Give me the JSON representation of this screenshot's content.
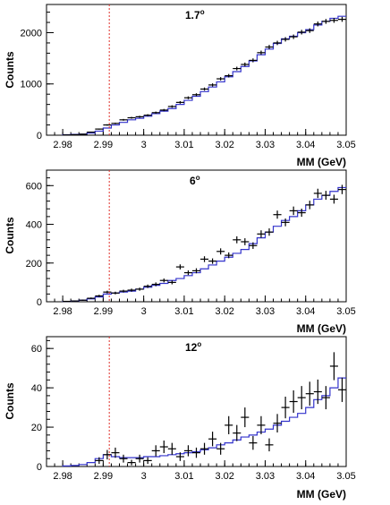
{
  "chart_data": [
    {
      "type": "histogram",
      "panel_label": "1.7",
      "panel_label_sup": "o",
      "ylabel": "Counts",
      "xlabel": "MM (GeV)",
      "xlim": [
        2.976,
        3.05
      ],
      "ylim": [
        0,
        2550
      ],
      "xticks": [
        "2.98",
        "2.99",
        "3",
        "3.01",
        "3.02",
        "3.03",
        "3.04",
        "3.05"
      ],
      "xtick_values": [
        2.98,
        2.99,
        3.0,
        3.01,
        3.02,
        3.03,
        3.04,
        3.05
      ],
      "yticks": [
        "0",
        "1000",
        "2000"
      ],
      "ytick_values": [
        0,
        1000,
        2000
      ],
      "threshold_x": 2.9915,
      "threshold_color": "#e0302a",
      "mc_color": "#3333cc",
      "bin_edges": [
        2.98,
        2.982,
        2.984,
        2.986,
        2.988,
        2.99,
        2.992,
        2.994,
        2.996,
        2.998,
        3.0,
        3.002,
        3.004,
        3.006,
        3.008,
        3.01,
        3.012,
        3.014,
        3.016,
        3.018,
        3.02,
        3.022,
        3.024,
        3.026,
        3.028,
        3.03,
        3.032,
        3.034,
        3.036,
        3.038,
        3.04,
        3.042,
        3.044,
        3.046,
        3.048,
        3.05
      ],
      "mc_values": [
        10,
        15,
        20,
        40,
        80,
        140,
        200,
        250,
        300,
        330,
        370,
        420,
        470,
        520,
        600,
        680,
        760,
        850,
        940,
        1040,
        1140,
        1240,
        1340,
        1450,
        1570,
        1680,
        1790,
        1880,
        1930,
        2000,
        2060,
        2150,
        2220,
        2280,
        2320
      ],
      "data_x": [
        2.981,
        2.983,
        2.985,
        2.987,
        2.989,
        2.991,
        2.993,
        2.995,
        2.997,
        2.999,
        3.001,
        3.003,
        3.005,
        3.007,
        3.009,
        3.011,
        3.013,
        3.015,
        3.017,
        3.019,
        3.021,
        3.023,
        3.025,
        3.027,
        3.029,
        3.031,
        3.033,
        3.035,
        3.037,
        3.039,
        3.041,
        3.043,
        3.045,
        3.047,
        3.049
      ],
      "data_y": [
        5,
        10,
        20,
        60,
        120,
        200,
        230,
        300,
        340,
        360,
        390,
        440,
        490,
        560,
        640,
        730,
        790,
        900,
        980,
        1100,
        1160,
        1300,
        1380,
        1460,
        1610,
        1720,
        1800,
        1870,
        1920,
        2010,
        2040,
        2170,
        2220,
        2240,
        2260
      ],
      "data_err": [
        3,
        4,
        5,
        8,
        11,
        14,
        15,
        17,
        18,
        19,
        20,
        21,
        22,
        24,
        25,
        27,
        28,
        30,
        31,
        33,
        34,
        36,
        37,
        38,
        40,
        41,
        42,
        43,
        44,
        45,
        45,
        47,
        47,
        47,
        48
      ]
    },
    {
      "type": "histogram",
      "panel_label": "6",
      "panel_label_sup": "o",
      "ylabel": "Counts",
      "xlabel": "MM (GeV)",
      "xlim": [
        2.976,
        3.05
      ],
      "ylim": [
        0,
        680
      ],
      "xticks": [
        "2.98",
        "2.99",
        "3",
        "3.01",
        "3.02",
        "3.03",
        "3.04",
        "3.05"
      ],
      "xtick_values": [
        2.98,
        2.99,
        3.0,
        3.01,
        3.02,
        3.03,
        3.04,
        3.05
      ],
      "yticks": [
        "0",
        "200",
        "400",
        "600"
      ],
      "ytick_values": [
        0,
        200,
        400,
        600
      ],
      "threshold_x": 2.9915,
      "threshold_color": "#e0302a",
      "mc_color": "#3333cc",
      "bin_edges": [
        2.98,
        2.982,
        2.984,
        2.986,
        2.988,
        2.99,
        2.992,
        2.994,
        2.996,
        2.998,
        3.0,
        3.002,
        3.004,
        3.006,
        3.008,
        3.01,
        3.012,
        3.014,
        3.016,
        3.018,
        3.02,
        3.022,
        3.024,
        3.026,
        3.028,
        3.03,
        3.032,
        3.034,
        3.036,
        3.038,
        3.04,
        3.042,
        3.044,
        3.046,
        3.048,
        3.05
      ],
      "mc_values": [
        2,
        4,
        8,
        15,
        25,
        40,
        45,
        50,
        55,
        65,
        75,
        85,
        95,
        110,
        120,
        135,
        150,
        170,
        190,
        210,
        230,
        250,
        270,
        300,
        330,
        360,
        390,
        420,
        440,
        470,
        500,
        530,
        550,
        570,
        590
      ],
      "data_x": [
        2.981,
        2.983,
        2.985,
        2.987,
        2.989,
        2.991,
        2.993,
        2.995,
        2.997,
        2.999,
        3.001,
        3.003,
        3.005,
        3.007,
        3.009,
        3.011,
        3.013,
        3.015,
        3.017,
        3.019,
        3.021,
        3.023,
        3.025,
        3.027,
        3.029,
        3.031,
        3.033,
        3.035,
        3.037,
        3.039,
        3.041,
        3.043,
        3.045,
        3.047,
        3.049
      ],
      "data_y": [
        2,
        4,
        8,
        18,
        30,
        50,
        45,
        55,
        60,
        65,
        80,
        90,
        110,
        100,
        180,
        150,
        160,
        220,
        210,
        260,
        240,
        320,
        310,
        290,
        350,
        360,
        450,
        410,
        470,
        460,
        500,
        560,
        550,
        530,
        580
      ],
      "data_err": [
        2,
        2,
        3,
        4,
        6,
        7,
        7,
        7,
        8,
        8,
        9,
        10,
        10,
        10,
        13,
        12,
        13,
        15,
        14,
        16,
        15,
        18,
        18,
        17,
        19,
        19,
        21,
        20,
        22,
        21,
        22,
        24,
        23,
        23,
        24
      ]
    },
    {
      "type": "histogram",
      "panel_label": "12",
      "panel_label_sup": "o",
      "ylabel": "Counts",
      "xlabel": "MM (GeV)",
      "xlim": [
        2.976,
        3.05
      ],
      "ylim": [
        0,
        66
      ],
      "xticks": [
        "2.98",
        "2.99",
        "3",
        "3.01",
        "3.02",
        "3.03",
        "3.04",
        "3.05"
      ],
      "xtick_values": [
        2.98,
        2.99,
        3.0,
        3.01,
        3.02,
        3.03,
        3.04,
        3.05
      ],
      "yticks": [
        "0",
        "20",
        "40",
        "60"
      ],
      "ytick_values": [
        0,
        20,
        40,
        60
      ],
      "threshold_x": 2.9915,
      "threshold_color": "#e0302a",
      "mc_color": "#3333cc",
      "bin_edges": [
        2.98,
        2.982,
        2.984,
        2.986,
        2.988,
        2.99,
        2.992,
        2.994,
        2.996,
        2.998,
        3.0,
        3.002,
        3.004,
        3.006,
        3.008,
        3.01,
        3.012,
        3.014,
        3.016,
        3.018,
        3.02,
        3.022,
        3.024,
        3.026,
        3.028,
        3.03,
        3.032,
        3.034,
        3.036,
        3.038,
        3.04,
        3.042,
        3.044,
        3.046,
        3.048,
        3.05
      ],
      "mc_values": [
        0.3,
        0.5,
        1,
        2,
        4,
        6,
        5,
        4.5,
        4.5,
        4.5,
        5,
        5,
        5.5,
        6,
        6.5,
        7,
        7.5,
        8.5,
        9.5,
        11,
        12,
        13.5,
        15,
        16,
        17.5,
        19,
        21,
        23,
        25,
        27,
        30,
        34,
        36,
        40,
        45
      ],
      "data_x": [
        2.981,
        2.983,
        2.985,
        2.987,
        2.989,
        2.991,
        2.993,
        2.995,
        2.997,
        2.999,
        3.001,
        3.003,
        3.005,
        3.007,
        3.009,
        3.011,
        3.013,
        3.015,
        3.017,
        3.019,
        3.021,
        3.023,
        3.025,
        3.027,
        3.029,
        3.031,
        3.033,
        3.035,
        3.037,
        3.039,
        3.041,
        3.043,
        3.045,
        3.047,
        3.049
      ],
      "data_y": [
        0,
        0,
        0,
        0,
        3,
        6,
        7,
        4,
        2,
        4,
        3,
        8,
        10,
        9,
        5,
        8,
        7,
        9,
        14,
        9,
        21,
        17,
        25,
        12,
        21,
        11,
        22,
        30,
        33,
        35,
        37,
        38,
        35,
        51,
        39
      ],
      "data_err": [
        0,
        0,
        0,
        0,
        1.7,
        2.4,
        2.6,
        2,
        1.4,
        2,
        1.7,
        2.8,
        3.2,
        3,
        2.2,
        2.8,
        2.6,
        3,
        3.7,
        3,
        4.6,
        4.1,
        5,
        3.5,
        4.6,
        3.3,
        4.7,
        5.5,
        5.7,
        5.9,
        6.1,
        6.2,
        5.9,
        7.1,
        6.2
      ]
    }
  ]
}
